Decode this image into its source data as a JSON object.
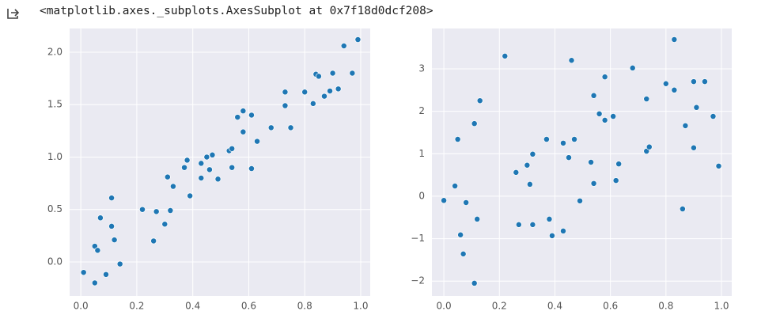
{
  "output_text": "<matplotlib.axes._subplots.AxesSubplot at 0x7f18d0dcf208>",
  "chart_data": [
    {
      "type": "scatter",
      "color": "#1f77b4",
      "grid": true,
      "xlim": [
        -0.04,
        1.034
      ],
      "ylim": [
        -0.325,
        2.226
      ],
      "xticks": [
        {
          "value": 0,
          "label": "0.0"
        },
        0.2,
        0.4,
        0.6,
        0.8,
        {
          "value": 1,
          "label": "1.0"
        }
      ],
      "yticks": [
        {
          "value": 0,
          "label": "0.0"
        },
        0.5,
        {
          "value": 1,
          "label": "1.0"
        },
        1.5,
        {
          "value": 2,
          "label": "2.0"
        }
      ],
      "x": [
        0.01,
        0.05,
        0.05,
        0.06,
        0.07,
        0.09,
        0.11,
        0.11,
        0.12,
        0.14,
        0.22,
        0.26,
        0.27,
        0.3,
        0.31,
        0.32,
        0.33,
        0.37,
        0.38,
        0.39,
        0.43,
        0.43,
        0.45,
        0.46,
        0.47,
        0.49,
        0.53,
        0.54,
        0.54,
        0.56,
        0.58,
        0.58,
        0.61,
        0.61,
        0.63,
        0.68,
        0.73,
        0.73,
        0.75,
        0.8,
        0.83,
        0.84,
        0.85,
        0.87,
        0.89,
        0.9,
        0.92,
        0.94,
        0.97,
        0.99
      ],
      "values": [
        -0.1,
        -0.2,
        0.15,
        0.11,
        0.42,
        -0.12,
        0.34,
        0.61,
        0.21,
        -0.02,
        0.5,
        0.2,
        0.48,
        0.36,
        0.81,
        0.49,
        0.72,
        0.9,
        0.97,
        0.63,
        0.94,
        0.8,
        1.0,
        0.88,
        1.02,
        0.79,
        1.06,
        1.08,
        0.9,
        1.38,
        1.44,
        1.24,
        1.4,
        0.89,
        1.15,
        1.28,
        1.49,
        1.62,
        1.28,
        1.62,
        1.51,
        1.79,
        1.77,
        1.58,
        1.63,
        1.8,
        1.65,
        2.06,
        1.8,
        2.12
      ]
    },
    {
      "type": "scatter",
      "color": "#1f77b4",
      "grid": true,
      "xlim": [
        -0.043,
        1.037
      ],
      "ylim": [
        -2.35,
        3.95
      ],
      "xticks": [
        {
          "value": 0,
          "label": "0.0"
        },
        0.2,
        0.4,
        0.6,
        0.8,
        {
          "value": 1,
          "label": "1.0"
        }
      ],
      "yticks": [
        {
          "value": -2,
          "label": "−2"
        },
        {
          "value": -1,
          "label": "−1"
        },
        0,
        1,
        2,
        3
      ],
      "x": [
        0.0,
        0.04,
        0.05,
        0.06,
        0.07,
        0.08,
        0.11,
        0.11,
        0.12,
        0.13,
        0.22,
        0.26,
        0.27,
        0.3,
        0.31,
        0.32,
        0.32,
        0.37,
        0.38,
        0.39,
        0.43,
        0.43,
        0.45,
        0.46,
        0.47,
        0.49,
        0.53,
        0.54,
        0.54,
        0.56,
        0.58,
        0.58,
        0.61,
        0.62,
        0.63,
        0.68,
        0.73,
        0.73,
        0.74,
        0.8,
        0.83,
        0.83,
        0.86,
        0.87,
        0.9,
        0.9,
        0.91,
        0.94,
        0.97,
        0.99
      ],
      "values": [
        -0.1,
        0.24,
        1.34,
        -0.91,
        -1.36,
        -0.15,
        1.71,
        -2.05,
        -0.54,
        2.25,
        3.3,
        0.56,
        -0.67,
        0.73,
        0.28,
        -0.67,
        0.99,
        1.34,
        -0.54,
        -0.93,
        1.25,
        -0.82,
        0.91,
        3.2,
        1.34,
        -0.11,
        0.8,
        0.3,
        2.37,
        1.94,
        1.79,
        2.81,
        1.88,
        0.37,
        0.76,
        3.02,
        2.29,
        1.06,
        1.16,
        2.65,
        3.69,
        2.5,
        -0.3,
        1.66,
        2.7,
        1.14,
        2.09,
        2.7,
        1.88,
        0.71
      ]
    }
  ]
}
